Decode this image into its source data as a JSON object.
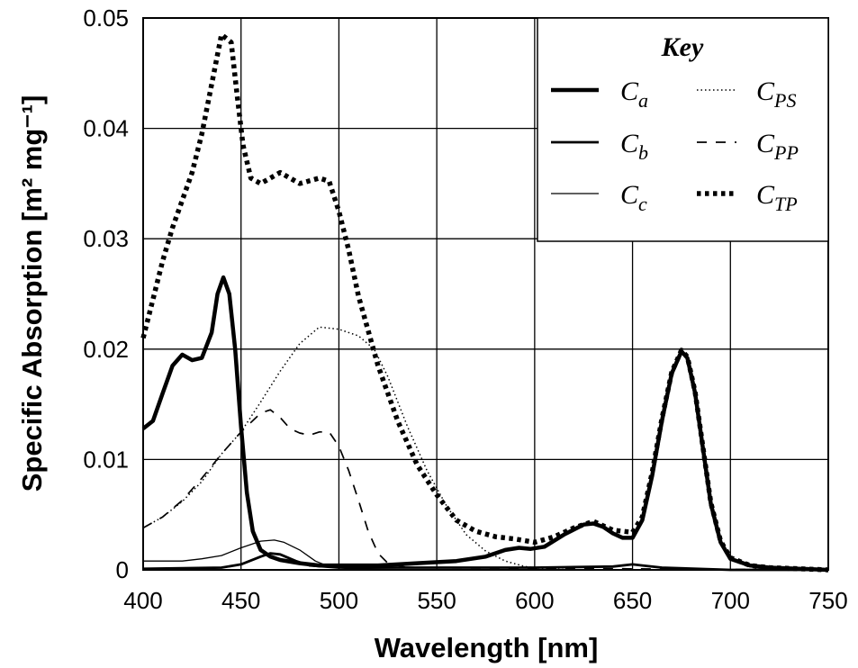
{
  "chart_data": {
    "type": "line",
    "xlabel": "Wavelength [nm]",
    "ylabel": "Specific Absorption [m² mg⁻¹]",
    "xlim": [
      400,
      750
    ],
    "ylim": [
      0,
      0.05
    ],
    "xticks": [
      "400",
      "450",
      "500",
      "550",
      "600",
      "650",
      "700",
      "750"
    ],
    "yticks": [
      "0",
      "0.01",
      "0.02",
      "0.03",
      "0.04",
      "0.05"
    ],
    "grid": true,
    "legend": {
      "title": "Key",
      "placement": "top-right",
      "entries": [
        {
          "symbol": "C",
          "sub": "a"
        },
        {
          "symbol": "C",
          "sub": "b"
        },
        {
          "symbol": "C",
          "sub": "c"
        },
        {
          "symbol": "C",
          "sub": "PS"
        },
        {
          "symbol": "C",
          "sub": "PP"
        },
        {
          "symbol": "C",
          "sub": "TP"
        }
      ]
    },
    "series": [
      {
        "legend_index": 0,
        "style": "thick-solid",
        "points": [
          [
            400,
            0.0128
          ],
          [
            405,
            0.0135
          ],
          [
            410,
            0.016
          ],
          [
            415,
            0.0185
          ],
          [
            420,
            0.0195
          ],
          [
            425,
            0.019
          ],
          [
            430,
            0.0192
          ],
          [
            435,
            0.0215
          ],
          [
            438,
            0.025
          ],
          [
            441,
            0.0265
          ],
          [
            444,
            0.025
          ],
          [
            447,
            0.02
          ],
          [
            450,
            0.013
          ],
          [
            453,
            0.007
          ],
          [
            456,
            0.0035
          ],
          [
            460,
            0.0018
          ],
          [
            465,
            0.0012
          ],
          [
            470,
            0.0009
          ],
          [
            480,
            0.0006
          ],
          [
            490,
            0.0004
          ],
          [
            500,
            0.0004
          ],
          [
            520,
            0.0004
          ],
          [
            540,
            0.0006
          ],
          [
            560,
            0.0008
          ],
          [
            575,
            0.0012
          ],
          [
            585,
            0.0018
          ],
          [
            592,
            0.002
          ],
          [
            598,
            0.0019
          ],
          [
            605,
            0.0021
          ],
          [
            615,
            0.0032
          ],
          [
            625,
            0.0041
          ],
          [
            630,
            0.0042
          ],
          [
            635,
            0.0039
          ],
          [
            640,
            0.0033
          ],
          [
            645,
            0.0029
          ],
          [
            650,
            0.0029
          ],
          [
            655,
            0.0045
          ],
          [
            660,
            0.0085
          ],
          [
            665,
            0.0135
          ],
          [
            670,
            0.0178
          ],
          [
            675,
            0.0198
          ],
          [
            678,
            0.0192
          ],
          [
            682,
            0.016
          ],
          [
            686,
            0.011
          ],
          [
            690,
            0.006
          ],
          [
            695,
            0.0025
          ],
          [
            700,
            0.001
          ],
          [
            710,
            0.0004
          ],
          [
            720,
            0.0002
          ],
          [
            750,
            0
          ]
        ]
      },
      {
        "legend_index": 1,
        "style": "medium-solid",
        "points": [
          [
            400,
            0.0001
          ],
          [
            440,
            0.0002
          ],
          [
            450,
            0.0005
          ],
          [
            460,
            0.0012
          ],
          [
            465,
            0.0015
          ],
          [
            470,
            0.0014
          ],
          [
            478,
            0.0008
          ],
          [
            485,
            0.0004
          ],
          [
            500,
            0.0002
          ],
          [
            560,
            0.0002
          ],
          [
            600,
            0.0002
          ],
          [
            640,
            0.0003
          ],
          [
            650,
            0.0005
          ],
          [
            655,
            0.0004
          ],
          [
            665,
            0.0002
          ],
          [
            700,
            0
          ],
          [
            750,
            0
          ]
        ]
      },
      {
        "legend_index": 2,
        "style": "thin-solid",
        "points": [
          [
            400,
            0.0008
          ],
          [
            420,
            0.0008
          ],
          [
            430,
            0.001
          ],
          [
            440,
            0.0013
          ],
          [
            450,
            0.002
          ],
          [
            460,
            0.0026
          ],
          [
            467,
            0.0027
          ],
          [
            472,
            0.0025
          ],
          [
            480,
            0.0018
          ],
          [
            488,
            0.0008
          ],
          [
            495,
            0.0003
          ],
          [
            505,
            0.0001
          ],
          [
            540,
            0
          ],
          [
            750,
            0
          ]
        ]
      },
      {
        "legend_index": 3,
        "style": "dotted",
        "points": [
          [
            400,
            0.0038
          ],
          [
            410,
            0.0048
          ],
          [
            420,
            0.0062
          ],
          [
            430,
            0.008
          ],
          [
            440,
            0.0105
          ],
          [
            450,
            0.0125
          ],
          [
            460,
            0.0152
          ],
          [
            470,
            0.018
          ],
          [
            480,
            0.0205
          ],
          [
            490,
            0.022
          ],
          [
            500,
            0.0218
          ],
          [
            510,
            0.0212
          ],
          [
            518,
            0.02
          ],
          [
            525,
            0.0175
          ],
          [
            535,
            0.013
          ],
          [
            545,
            0.009
          ],
          [
            555,
            0.0058
          ],
          [
            565,
            0.0032
          ],
          [
            575,
            0.0017
          ],
          [
            585,
            0.0008
          ],
          [
            595,
            0.0003
          ],
          [
            605,
            0.0001
          ],
          [
            620,
            0
          ],
          [
            750,
            0
          ]
        ]
      },
      {
        "legend_index": 4,
        "style": "dashed",
        "points": [
          [
            400,
            0.0038
          ],
          [
            410,
            0.0048
          ],
          [
            420,
            0.0063
          ],
          [
            430,
            0.0083
          ],
          [
            440,
            0.0105
          ],
          [
            450,
            0.0125
          ],
          [
            460,
            0.0142
          ],
          [
            465,
            0.0145
          ],
          [
            470,
            0.0138
          ],
          [
            475,
            0.0128
          ],
          [
            480,
            0.0124
          ],
          [
            485,
            0.0122
          ],
          [
            490,
            0.0125
          ],
          [
            495,
            0.0125
          ],
          [
            500,
            0.0112
          ],
          [
            505,
            0.009
          ],
          [
            510,
            0.0063
          ],
          [
            515,
            0.0035
          ],
          [
            520,
            0.0015
          ],
          [
            525,
            0.0006
          ],
          [
            535,
            0.0002
          ],
          [
            750,
            0
          ]
        ]
      },
      {
        "legend_index": 5,
        "style": "heavy-dotted",
        "points": [
          [
            400,
            0.021
          ],
          [
            405,
            0.0245
          ],
          [
            410,
            0.028
          ],
          [
            415,
            0.031
          ],
          [
            420,
            0.0335
          ],
          [
            425,
            0.036
          ],
          [
            430,
            0.0395
          ],
          [
            435,
            0.044
          ],
          [
            440,
            0.0485
          ],
          [
            445,
            0.0478
          ],
          [
            448,
            0.043
          ],
          [
            451,
            0.0385
          ],
          [
            455,
            0.0355
          ],
          [
            460,
            0.035
          ],
          [
            465,
            0.0355
          ],
          [
            470,
            0.036
          ],
          [
            475,
            0.0355
          ],
          [
            480,
            0.035
          ],
          [
            490,
            0.0355
          ],
          [
            495,
            0.0352
          ],
          [
            500,
            0.0325
          ],
          [
            505,
            0.029
          ],
          [
            510,
            0.0248
          ],
          [
            520,
            0.0185
          ],
          [
            530,
            0.0135
          ],
          [
            540,
            0.0095
          ],
          [
            550,
            0.0068
          ],
          [
            560,
            0.0045
          ],
          [
            570,
            0.0035
          ],
          [
            580,
            0.003
          ],
          [
            590,
            0.0028
          ],
          [
            600,
            0.0025
          ],
          [
            610,
            0.003
          ],
          [
            620,
            0.0038
          ],
          [
            630,
            0.0044
          ],
          [
            640,
            0.0036
          ],
          [
            650,
            0.0034
          ],
          [
            655,
            0.0048
          ],
          [
            660,
            0.0088
          ],
          [
            665,
            0.0137
          ],
          [
            670,
            0.0179
          ],
          [
            675,
            0.0199
          ],
          [
            678,
            0.0193
          ],
          [
            682,
            0.0161
          ],
          [
            686,
            0.0111
          ],
          [
            690,
            0.0061
          ],
          [
            695,
            0.0026
          ],
          [
            700,
            0.0011
          ],
          [
            710,
            0.0004
          ],
          [
            720,
            0.0002
          ],
          [
            750,
            0
          ]
        ]
      }
    ]
  }
}
